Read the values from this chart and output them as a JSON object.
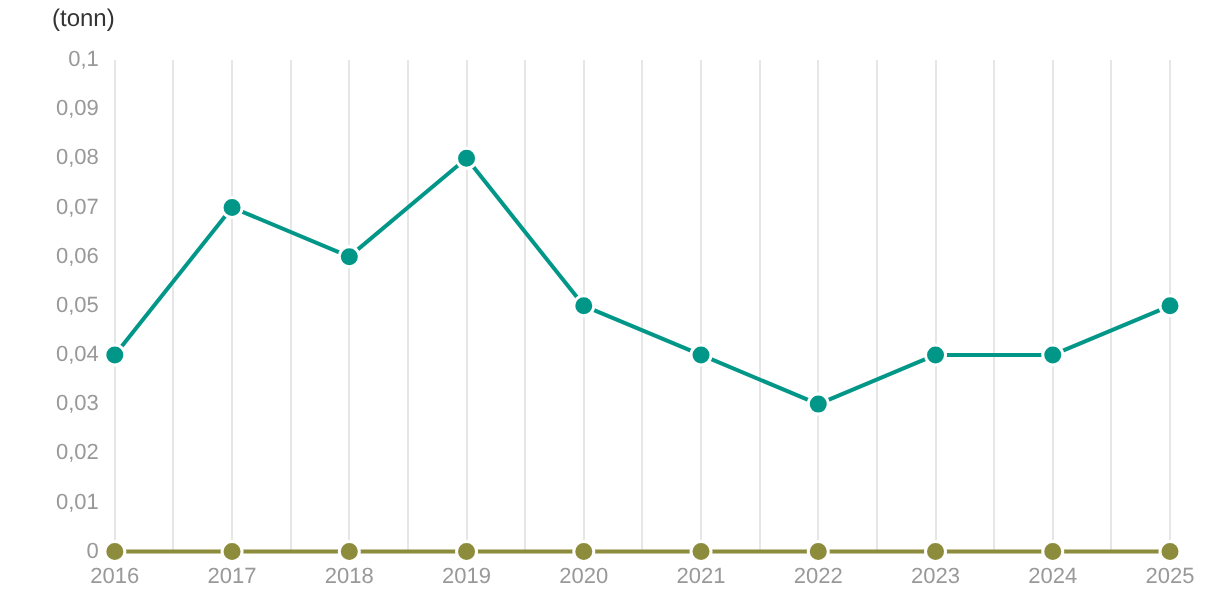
{
  "chart_data": {
    "type": "line",
    "ylabel": "(tonn)",
    "x": [
      2016,
      2017,
      2018,
      2019,
      2020,
      2021,
      2022,
      2023,
      2024,
      2025
    ],
    "series": [
      {
        "color": "#009688",
        "values": [
          0.04,
          0.07,
          0.06,
          0.08,
          0.05,
          0.04,
          0.03,
          0.04,
          0.04,
          0.05
        ]
      },
      {
        "color": "#8c8c3c",
        "values": [
          0,
          0,
          0,
          0,
          0,
          0,
          0,
          0,
          0,
          0
        ]
      }
    ],
    "xlim": [
      2016,
      2025
    ],
    "xticks": [
      2016,
      {
        "value": 2016.5,
        "label": null
      },
      2017,
      {
        "value": 2017.5,
        "label": null
      },
      2018,
      {
        "value": 2018.5,
        "label": null
      },
      2019,
      {
        "value": 2019.5,
        "label": null
      },
      2020,
      {
        "value": 2020.5,
        "label": null
      },
      2021,
      {
        "value": 2021.5,
        "label": null
      },
      2022,
      {
        "value": 2022.5,
        "label": null
      },
      2023,
      {
        "value": 2023.5,
        "label": null
      },
      2024,
      {
        "value": 2024.5,
        "label": null
      },
      2025
    ],
    "ylim": [
      0,
      0.1
    ],
    "yticks": [
      0,
      {
        "value": 0.01,
        "label": "0,01"
      },
      {
        "value": 0.02,
        "label": "0,02"
      },
      {
        "value": 0.03,
        "label": "0,03"
      },
      {
        "value": 0.04,
        "label": "0,04"
      },
      {
        "value": 0.05,
        "label": "0,05"
      },
      {
        "value": 0.06,
        "label": "0,06"
      },
      {
        "value": 0.07,
        "label": "0,07"
      },
      {
        "value": 0.08,
        "label": "0,08"
      },
      {
        "value": 0.09,
        "label": "0,09"
      },
      {
        "value": 0.1,
        "label": "0,1"
      }
    ],
    "grid": "x",
    "marker": "circle",
    "legend": false
  }
}
